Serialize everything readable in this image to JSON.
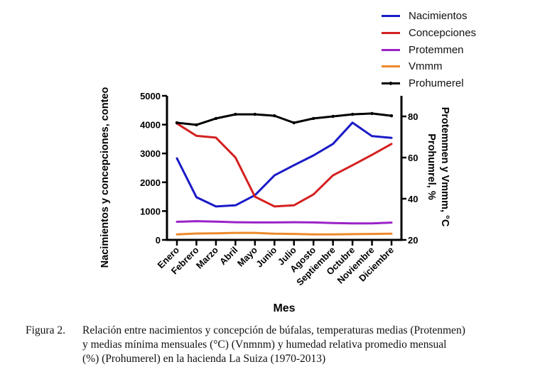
{
  "chart_data": {
    "type": "line",
    "title": "",
    "categories": [
      "Enero",
      "Febrero",
      "Marzo",
      "Abril",
      "Mayo",
      "Junio",
      "Julio",
      "Agosto",
      "Septiembre",
      "Octubre",
      "Noviembre",
      "Diciembre"
    ],
    "xlabel": "Mes",
    "ylabel_left": "Nacimientos y concepciones, conteo",
    "ylabel_right_line1": "Protemmen y Vmmm, °C",
    "ylabel_right_line2": "Prohumrel, %",
    "ylim_left": [
      0,
      5000
    ],
    "yticks_left": [
      0,
      1000,
      2000,
      3000,
      4000,
      5000
    ],
    "yticks_left_labels": [
      "0",
      "1000",
      "2000",
      "3000",
      "4000",
      "5000"
    ],
    "ylim_right": [
      20,
      90
    ],
    "yticks_right": [
      20,
      40,
      60,
      80
    ],
    "yticks_right_labels": [
      "20",
      "40",
      "60",
      "80"
    ],
    "grid": false,
    "legend_position": "top-right",
    "series": [
      {
        "name": "Nacimientos",
        "axis": "left",
        "color": "#1a1ac8",
        "markers": false,
        "values": [
          2830,
          1480,
          1160,
          1200,
          1550,
          2240,
          2590,
          2930,
          3330,
          4070,
          3600,
          3540
        ]
      },
      {
        "name": "Concepciones",
        "axis": "left",
        "color": "#d42020",
        "markers": false,
        "values": [
          4040,
          3610,
          3550,
          2860,
          1500,
          1160,
          1200,
          1580,
          2240,
          2590,
          2950,
          3330
        ]
      },
      {
        "name": "Protemmen",
        "axis": "right",
        "color": "#9b22c8",
        "markers": false,
        "values": [
          28.8,
          29.1,
          28.9,
          28.6,
          28.5,
          28.5,
          28.6,
          28.5,
          28.2,
          28.0,
          28.0,
          28.4
        ]
      },
      {
        "name": "Vmmm",
        "axis": "right",
        "color": "#ec8a2a",
        "markers": false,
        "values": [
          22.7,
          23.1,
          23.2,
          23.4,
          23.4,
          23.0,
          22.9,
          22.7,
          22.7,
          22.8,
          22.9,
          23.0
        ]
      },
      {
        "name": "Prohumerel",
        "axis": "right",
        "color": "#000000",
        "markers": true,
        "values": [
          76.9,
          75.9,
          79.0,
          81.0,
          81.0,
          80.3,
          76.9,
          79.0,
          80.0,
          81.0,
          81.4,
          80.3
        ]
      }
    ]
  },
  "caption": {
    "figure_label": "Figura 2.",
    "lines": [
      "Relación entre nacimientos y concepción de búfalas, temperaturas medias (Protenmen)",
      "y medias mínima mensuales (°C) (Vnmnm) y humedad relativa promedio mensual",
      "(%) (Prohumerel) en la hacienda La Suiza (1970-2013)"
    ]
  }
}
